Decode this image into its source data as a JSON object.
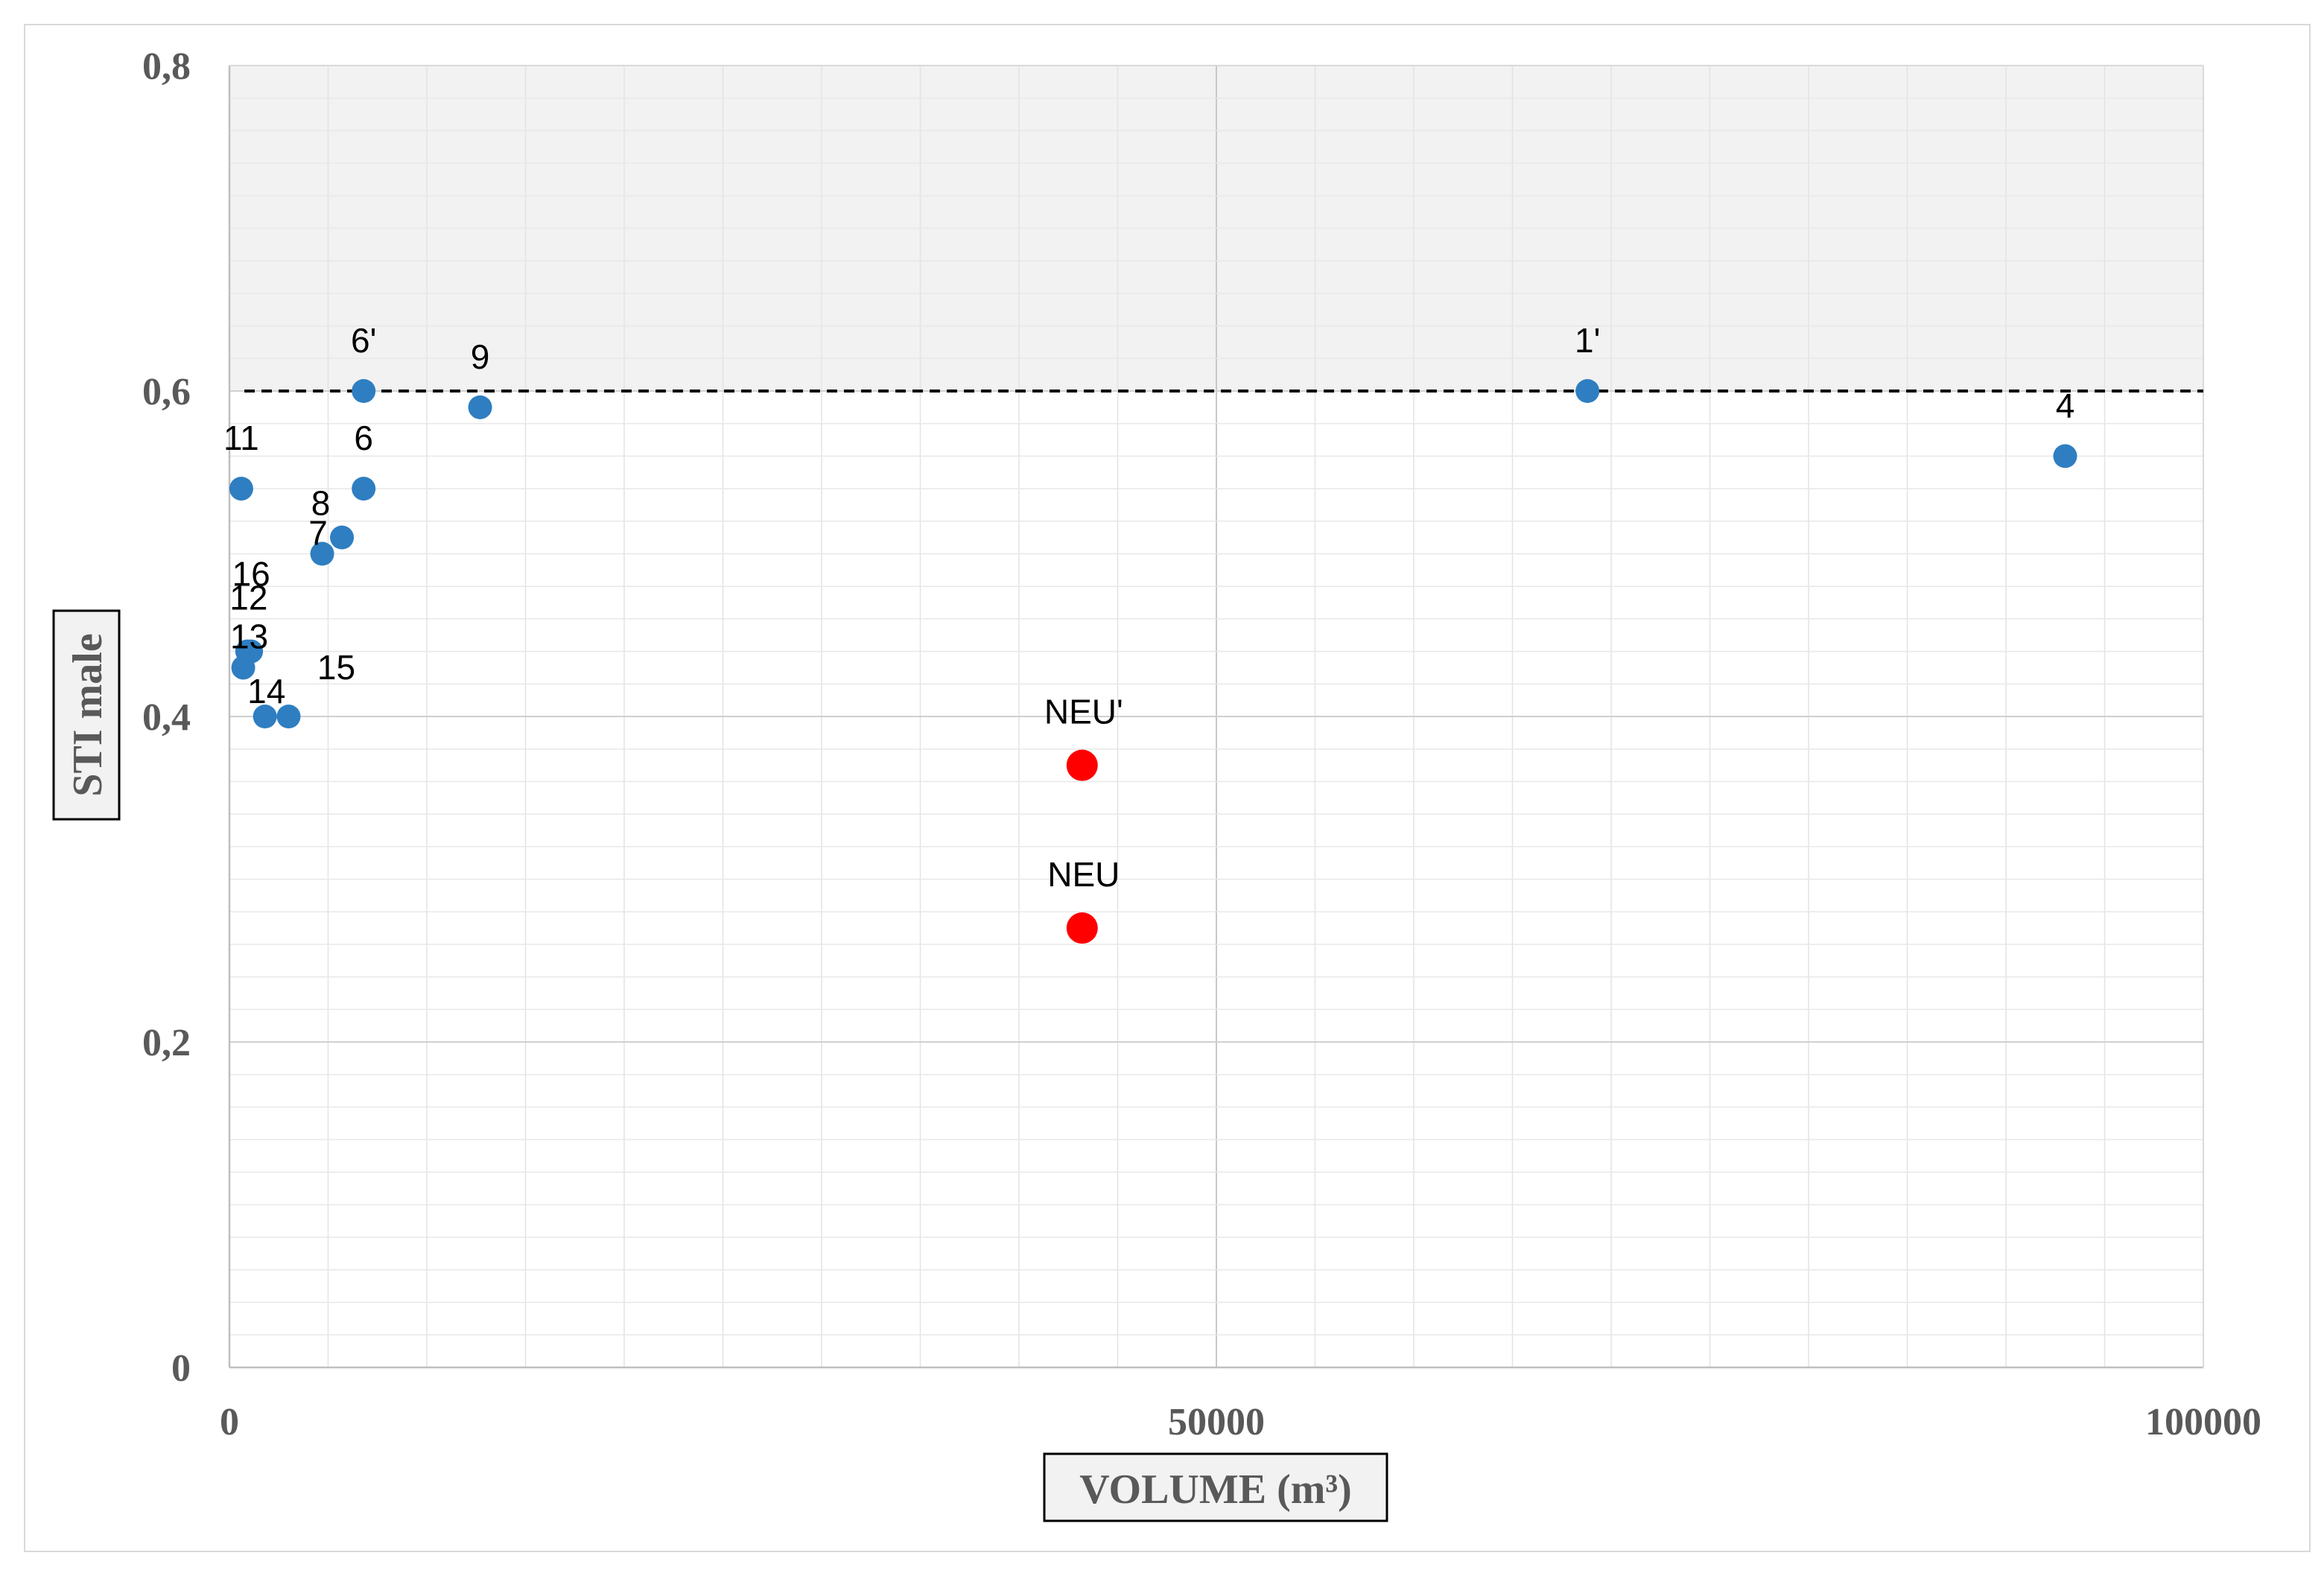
{
  "chart_data": {
    "type": "scatter",
    "xlabel": "VOLUME (m³)",
    "ylabel": "STI male",
    "xlim": [
      0,
      100000
    ],
    "ylim": [
      0,
      0.8
    ],
    "x_ticks": [
      "0",
      "50000",
      "100000"
    ],
    "y_ticks": [
      "0",
      "0,2",
      "0,4",
      "0,6",
      "0,8"
    ],
    "grid": true,
    "threshold": {
      "y": 0.6,
      "style": "dashed",
      "shaded_above": true
    },
    "series": [
      {
        "color": "#2e7ec1",
        "points": [
          {
            "label": "6'",
            "x": 6800,
            "y": 0.6
          },
          {
            "label": "9",
            "x": 12700,
            "y": 0.59
          },
          {
            "label": "1'",
            "x": 68800,
            "y": 0.6
          },
          {
            "label": "4",
            "x": 93000,
            "y": 0.56
          },
          {
            "label": "11",
            "x": 600,
            "y": 0.54
          },
          {
            "label": "6",
            "x": 6800,
            "y": 0.54
          },
          {
            "label": "7",
            "x": 5700,
            "y": 0.51
          },
          {
            "label": "8",
            "x": 4700,
            "y": 0.5
          },
          {
            "label": "16",
            "x": 1100,
            "y": 0.44
          },
          {
            "label": "12",
            "x": 900,
            "y": 0.44
          },
          {
            "label": "13",
            "x": 700,
            "y": 0.43
          },
          {
            "label": "14",
            "x": 1800,
            "y": 0.4
          },
          {
            "label": "15",
            "x": 3000,
            "y": 0.4
          }
        ]
      },
      {
        "color": "#ff0000",
        "points": [
          {
            "label": "NEU'",
            "x": 43200,
            "y": 0.37
          },
          {
            "label": "NEU",
            "x": 43200,
            "y": 0.27
          }
        ]
      }
    ]
  }
}
